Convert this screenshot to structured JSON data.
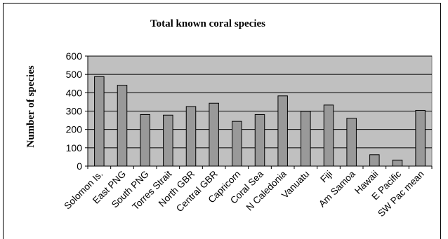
{
  "chart_data": {
    "type": "bar",
    "title": "Total known coral species",
    "xlabel": "",
    "ylabel": "Number of species",
    "ylim": [
      0,
      600
    ],
    "yticks": [
      0,
      100,
      200,
      300,
      400,
      500,
      600
    ],
    "grid": "y-major",
    "legend": "none",
    "categories": [
      "Solomon Is.",
      "East PNG",
      "South PNG",
      "Torres Strait",
      "North GBR",
      "Central GBR",
      "Capricorn",
      "Coral Sea",
      "N Caledonia",
      "Vanuatu",
      "Fiji",
      "Am Samoa",
      "Hawaii",
      "E Pacific",
      "SW Pac mean"
    ],
    "values": [
      488,
      441,
      281,
      278,
      325,
      343,
      244,
      281,
      383,
      299,
      333,
      261,
      62,
      33,
      304
    ],
    "colors": {
      "plot_background": "#c0c0c0",
      "bar_fill": "#999999",
      "bar_stroke": "#000000",
      "gridline": "#000000"
    }
  }
}
